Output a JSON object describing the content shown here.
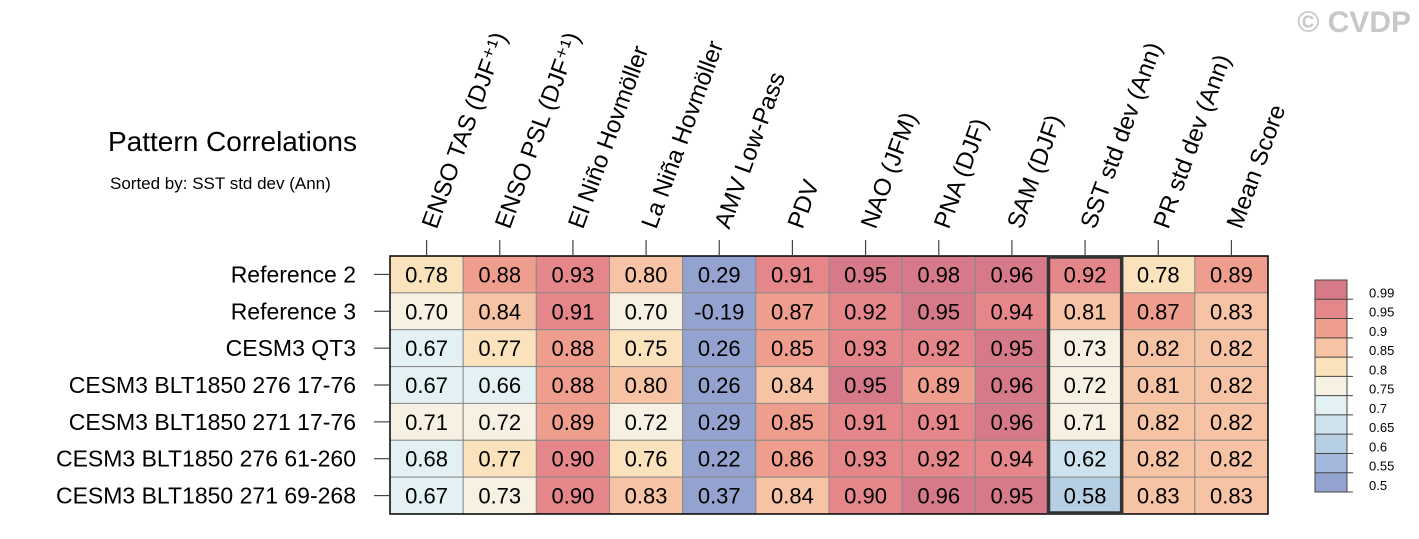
{
  "watermark": "© CVDP",
  "chart_data": {
    "type": "heatmap",
    "title": "Pattern Correlations",
    "subtitle": "Sorted by: SST std dev (Ann)",
    "columns": [
      "ENSO TAS (DJF⁺¹)",
      "ENSO PSL (DJF⁺¹)",
      "El Niño Hovmöller",
      "La Niña Hovmöller",
      "AMV Low-Pass",
      "PDV",
      "NAO (JFM)",
      "PNA (DJF)",
      "SAM (DJF)",
      "SST std dev (Ann)",
      "PR std dev (Ann)",
      "Mean Score"
    ],
    "highlighted_column": "SST std dev (Ann)",
    "rows": [
      "Reference 2",
      "Reference 3",
      "CESM3 QT3",
      "CESM3 BLT1850 276 17-76",
      "CESM3 BLT1850 271 17-76",
      "CESM3 BLT1850 276 61-260",
      "CESM3 BLT1850 271 69-268"
    ],
    "values": [
      [
        "0.78",
        "0.88",
        "0.93",
        "0.80",
        "0.29",
        "0.91",
        "0.95",
        "0.98",
        "0.96",
        "0.92",
        "0.78",
        "0.89"
      ],
      [
        "0.70",
        "0.84",
        "0.91",
        "0.70",
        "-0.19",
        "0.87",
        "0.92",
        "0.95",
        "0.94",
        "0.81",
        "0.87",
        "0.83"
      ],
      [
        "0.67",
        "0.77",
        "0.88",
        "0.75",
        "0.26",
        "0.85",
        "0.93",
        "0.92",
        "0.95",
        "0.73",
        "0.82",
        "0.82"
      ],
      [
        "0.67",
        "0.66",
        "0.88",
        "0.80",
        "0.26",
        "0.84",
        "0.95",
        "0.89",
        "0.96",
        "0.72",
        "0.81",
        "0.82"
      ],
      [
        "0.71",
        "0.72",
        "0.89",
        "0.72",
        "0.29",
        "0.85",
        "0.91",
        "0.91",
        "0.96",
        "0.71",
        "0.82",
        "0.82"
      ],
      [
        "0.68",
        "0.77",
        "0.90",
        "0.76",
        "0.22",
        "0.86",
        "0.93",
        "0.92",
        "0.94",
        "0.62",
        "0.82",
        "0.82"
      ],
      [
        "0.67",
        "0.73",
        "0.90",
        "0.83",
        "0.37",
        "0.84",
        "0.90",
        "0.96",
        "0.95",
        "0.58",
        "0.83",
        "0.83"
      ]
    ],
    "colorbar": {
      "labels": [
        "0.99",
        "0.95",
        "0.9",
        "0.85",
        "0.8",
        "0.75",
        "0.7",
        "0.65",
        "0.6",
        "0.55",
        "0.5"
      ],
      "colors": [
        "#d67a8a",
        "#e4868a",
        "#ef9e8e",
        "#f6c3a4",
        "#fae2bd",
        "#f6f1e2",
        "#e3f0f4",
        "#cde2ec",
        "#b7cfe2",
        "#a3b8da",
        "#93a2cf"
      ]
    }
  }
}
